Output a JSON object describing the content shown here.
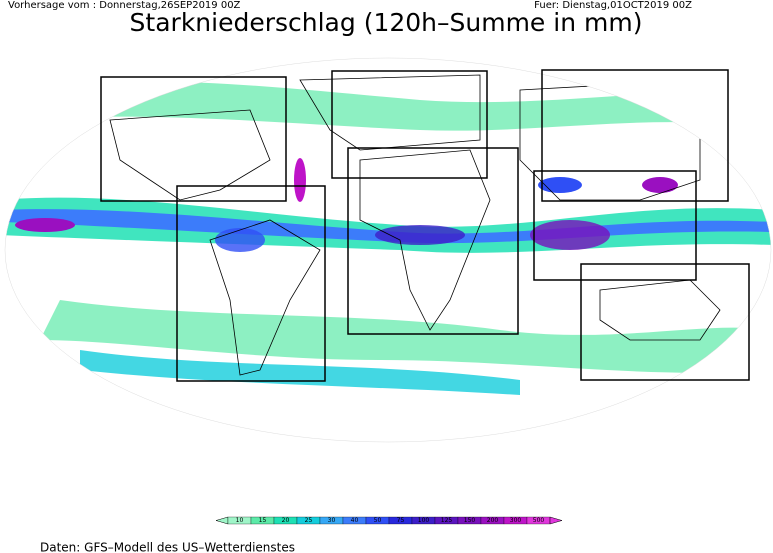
{
  "header": {
    "left": "Vorhersage vom : Donnerstag,26SEP2019 00Z",
    "right": "Fuer: Dienstag,01OCT2019 00Z",
    "title": "Starkniederschlag (120h–Summe in mm)"
  },
  "legend": {
    "labels": [
      "10",
      "15",
      "20",
      "25",
      "30",
      "40",
      "50",
      "75",
      "100",
      "125",
      "150",
      "200",
      "300",
      "500"
    ],
    "colors": [
      "#9ff5c8",
      "#5ceaa8",
      "#1ee0b4",
      "#14cddc",
      "#36a8f5",
      "#3c7cfa",
      "#2f4ff5",
      "#2828dc",
      "#3c1ec8",
      "#5a14be",
      "#7810bc",
      "#9a10c0",
      "#be14c8",
      "#e036dc"
    ]
  },
  "footer": "Daten: GFS–Modell des US–Wetterdienstes"
}
